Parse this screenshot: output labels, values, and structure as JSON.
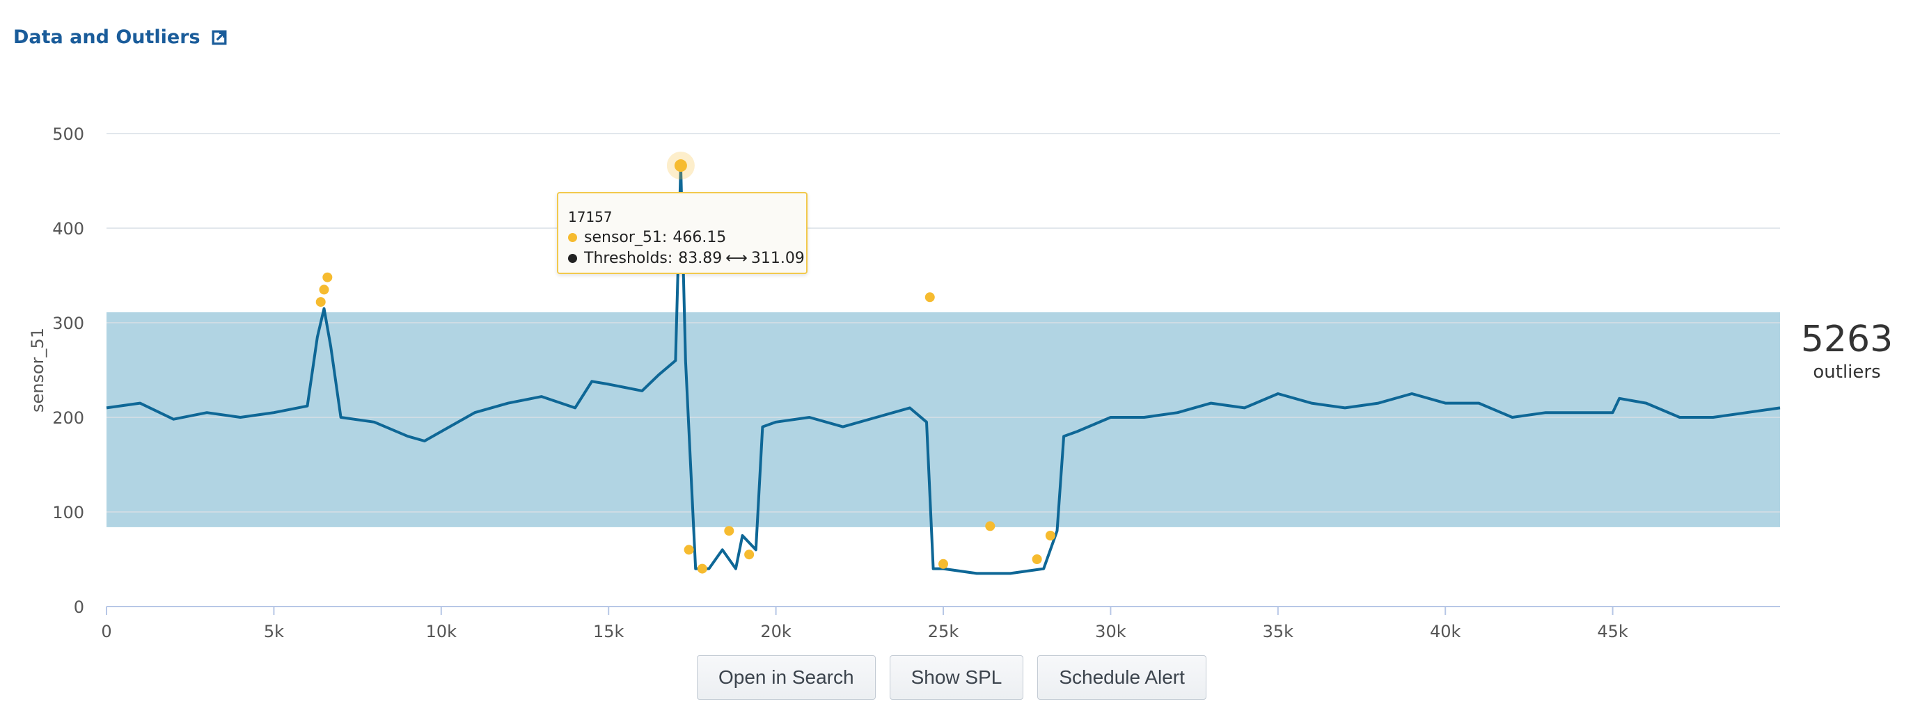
{
  "header": {
    "title": "Data and Outliers"
  },
  "summary": {
    "outlier_count": "5263",
    "outlier_label": "outliers"
  },
  "tooltip": {
    "x_value": "17157",
    "series_label": "sensor_51:",
    "series_value": "466.15",
    "threshold_label": "Thresholds:",
    "threshold_low": "83.89",
    "threshold_sep": "⟷",
    "threshold_high": "311.09"
  },
  "buttons": {
    "open_search": "Open in Search",
    "show_spl": "Show SPL",
    "schedule_alert": "Schedule Alert"
  },
  "colors": {
    "line": "#0e6796",
    "band": "#b1d4e3",
    "outlier": "#f6bb2f",
    "link": "#1a5c9a"
  },
  "chart_data": {
    "type": "line",
    "title": "",
    "xlabel": "",
    "ylabel": "sensor_51",
    "xlim": [
      0,
      50000
    ],
    "ylim": [
      0,
      500
    ],
    "x_ticks": [
      0,
      5000,
      10000,
      15000,
      20000,
      25000,
      30000,
      35000,
      40000,
      45000
    ],
    "x_tick_labels": [
      "0",
      "5k",
      "10k",
      "15k",
      "20k",
      "25k",
      "30k",
      "35k",
      "40k",
      "45k"
    ],
    "y_ticks": [
      0,
      100,
      200,
      300,
      400,
      500
    ],
    "grid": "horizontal",
    "threshold_band": {
      "low": 83.89,
      "high": 311.09
    },
    "series": [
      {
        "name": "sensor_51",
        "x": [
          0,
          1000,
          2000,
          3000,
          4000,
          5000,
          6000,
          6300,
          6500,
          6700,
          7000,
          8000,
          9000,
          9500,
          10000,
          11000,
          12000,
          13000,
          14000,
          14500,
          15000,
          16000,
          16500,
          17000,
          17157,
          17300,
          17600,
          18000,
          18400,
          18800,
          19000,
          19400,
          19600,
          20000,
          21000,
          22000,
          23000,
          24000,
          24500,
          24700,
          25000,
          26000,
          27000,
          28000,
          28400,
          28600,
          29000,
          30000,
          31000,
          32000,
          33000,
          34000,
          35000,
          36000,
          37000,
          38000,
          39000,
          40000,
          41000,
          42000,
          43000,
          44000,
          45000,
          45200,
          46000,
          47000,
          48000,
          49000,
          50000
        ],
        "values": [
          210,
          215,
          198,
          205,
          200,
          205,
          212,
          285,
          315,
          275,
          200,
          195,
          180,
          175,
          185,
          205,
          215,
          222,
          210,
          238,
          235,
          228,
          245,
          260,
          466.15,
          260,
          40,
          40,
          60,
          40,
          75,
          60,
          190,
          195,
          200,
          190,
          200,
          210,
          195,
          40,
          40,
          35,
          35,
          40,
          80,
          180,
          185,
          200,
          200,
          205,
          215,
          210,
          225,
          215,
          210,
          215,
          225,
          215,
          215,
          200,
          205,
          205,
          205,
          220,
          215,
          200,
          200,
          205,
          210
        ]
      }
    ],
    "outliers": {
      "x": [
        6400,
        6500,
        6600,
        17157,
        17400,
        17800,
        18600,
        19200,
        24600,
        25000,
        26400,
        27800,
        28200
      ],
      "values": [
        322,
        335,
        348,
        466.15,
        60,
        40,
        80,
        55,
        327,
        45,
        85,
        50,
        75
      ]
    }
  }
}
